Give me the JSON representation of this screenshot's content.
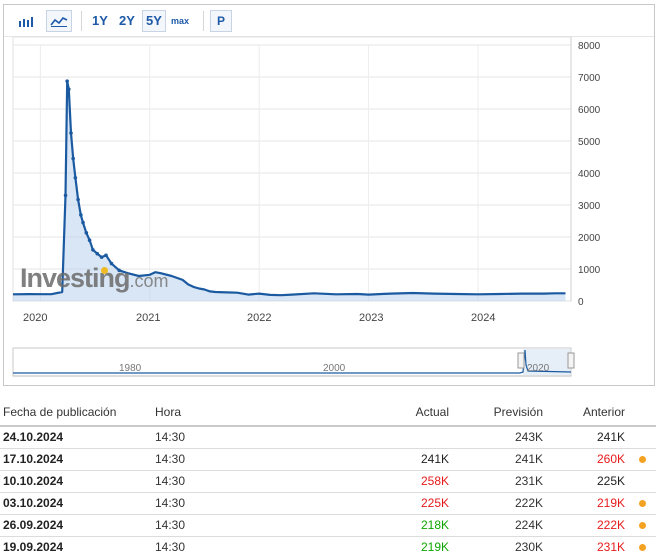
{
  "toolbar": {
    "bar_icon": "bar-chart-icon",
    "area_icon": "area-chart-icon",
    "range_buttons": [
      "1Y",
      "2Y",
      "5Y",
      "max"
    ],
    "active_range": "5Y",
    "p_button": "P"
  },
  "watermark": {
    "brand": "Investing",
    "suffix": ".com"
  },
  "navigator": {
    "labels": [
      "1980",
      "2000",
      "2020"
    ]
  },
  "chart_data": {
    "type": "line",
    "y_ticks": [
      "8000",
      "7000",
      "6000",
      "5000",
      "4000",
      "3000",
      "2000",
      "1000",
      "0"
    ],
    "x_ticks": [
      "2020",
      "2021",
      "2022",
      "2023",
      "2024"
    ],
    "ylim": [
      0,
      8000
    ],
    "xlim": [
      2019.75,
      2024.85
    ],
    "grid": true,
    "series": [
      {
        "points": [
          [
            2019.75,
            210
          ],
          [
            2019.9,
            215
          ],
          [
            2020.0,
            212
          ],
          [
            2020.1,
            214
          ],
          [
            2020.2,
            282
          ],
          [
            2020.23,
            3300
          ],
          [
            2020.245,
            6870
          ],
          [
            2020.26,
            6620
          ],
          [
            2020.28,
            5250
          ],
          [
            2020.3,
            4450
          ],
          [
            2020.32,
            3850
          ],
          [
            2020.345,
            3170
          ],
          [
            2020.37,
            2690
          ],
          [
            2020.39,
            2450
          ],
          [
            2020.42,
            2130
          ],
          [
            2020.45,
            1900
          ],
          [
            2020.48,
            1600
          ],
          [
            2020.52,
            1480
          ],
          [
            2020.56,
            1370
          ],
          [
            2020.6,
            1430
          ],
          [
            2020.65,
            1170
          ],
          [
            2020.72,
            960
          ],
          [
            2020.8,
            870
          ],
          [
            2020.9,
            780
          ],
          [
            2021.0,
            820
          ],
          [
            2021.05,
            900
          ],
          [
            2021.1,
            870
          ],
          [
            2021.2,
            780
          ],
          [
            2021.3,
            660
          ],
          [
            2021.35,
            520
          ],
          [
            2021.4,
            440
          ],
          [
            2021.45,
            390
          ],
          [
            2021.5,
            360
          ],
          [
            2021.55,
            300
          ],
          [
            2021.6,
            280
          ],
          [
            2021.7,
            270
          ],
          [
            2021.8,
            260
          ],
          [
            2021.9,
            200
          ],
          [
            2022.0,
            230
          ],
          [
            2022.1,
            190
          ],
          [
            2022.2,
            180
          ],
          [
            2022.3,
            200
          ],
          [
            2022.5,
            240
          ],
          [
            2022.7,
            210
          ],
          [
            2022.9,
            220
          ],
          [
            2023.0,
            200
          ],
          [
            2023.2,
            230
          ],
          [
            2023.4,
            250
          ],
          [
            2023.6,
            230
          ],
          [
            2023.8,
            220
          ],
          [
            2024.0,
            210
          ],
          [
            2024.2,
            220
          ],
          [
            2024.4,
            230
          ],
          [
            2024.6,
            230
          ],
          [
            2024.7,
            240
          ],
          [
            2024.8,
            241
          ]
        ]
      }
    ]
  },
  "table": {
    "headers": [
      "Fecha de publicación",
      "Hora",
      "Actual",
      "Previsión",
      "Anterior"
    ],
    "rows": [
      {
        "date": "24.10.2024",
        "time": "14:30",
        "actual": "",
        "actual_color": "black",
        "forecast": "243K",
        "previous": "241K",
        "previous_color": "black",
        "revised": false
      },
      {
        "date": "17.10.2024",
        "time": "14:30",
        "actual": "241K",
        "actual_color": "black",
        "forecast": "241K",
        "previous": "260K",
        "previous_color": "red",
        "revised": true
      },
      {
        "date": "10.10.2024",
        "time": "14:30",
        "actual": "258K",
        "actual_color": "red",
        "forecast": "231K",
        "previous": "225K",
        "previous_color": "black",
        "revised": false
      },
      {
        "date": "03.10.2024",
        "time": "14:30",
        "actual": "225K",
        "actual_color": "red",
        "forecast": "222K",
        "previous": "219K",
        "previous_color": "red",
        "revised": true
      },
      {
        "date": "26.09.2024",
        "time": "14:30",
        "actual": "218K",
        "actual_color": "green",
        "forecast": "224K",
        "previous": "222K",
        "previous_color": "red",
        "revised": true
      },
      {
        "date": "19.09.2024",
        "time": "14:30",
        "actual": "219K",
        "actual_color": "green",
        "forecast": "230K",
        "previous": "231K",
        "previous_color": "red",
        "revised": true
      }
    ]
  },
  "colors": {
    "line": "#1b5aa0",
    "area": "#b9d2ee",
    "navigator_line": "#1b5aa0",
    "revised_dot": "#f4a223",
    "red": "#e61a1a",
    "green": "#0ea600"
  }
}
